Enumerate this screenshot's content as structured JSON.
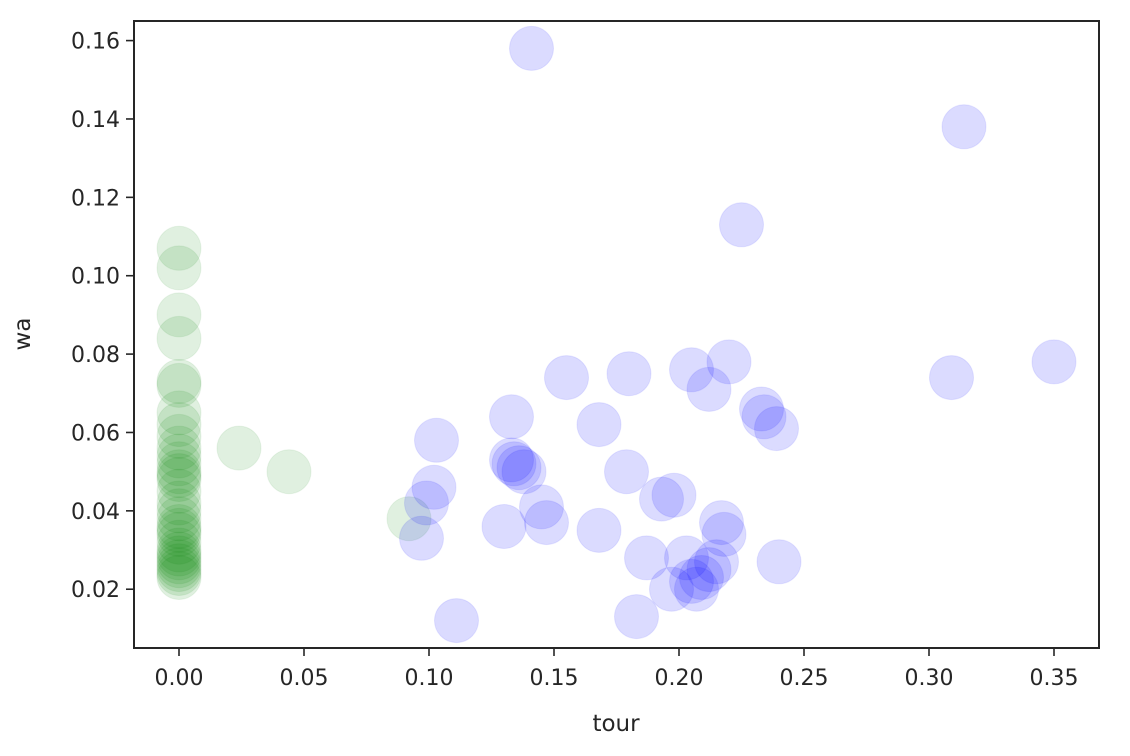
{
  "chart_data": {
    "type": "scatter",
    "title": "",
    "xlabel": "tour",
    "ylabel": "wa",
    "xlim": [
      -0.018,
      0.368
    ],
    "ylim": [
      0.005,
      0.165
    ],
    "xticks": [
      0.0,
      0.05,
      0.1,
      0.15,
      0.2,
      0.25,
      0.3,
      0.35
    ],
    "xtick_labels": [
      "0.00",
      "0.05",
      "0.10",
      "0.15",
      "0.20",
      "0.25",
      "0.30",
      "0.35"
    ],
    "yticks": [
      0.02,
      0.04,
      0.06,
      0.08,
      0.1,
      0.12,
      0.14,
      0.16
    ],
    "ytick_labels": [
      "0.02",
      "0.04",
      "0.06",
      "0.08",
      "0.10",
      "0.12",
      "0.14",
      "0.16"
    ],
    "grid": false,
    "legend": "none",
    "series": [
      {
        "color": "#008000",
        "alpha": 0.12,
        "points": [
          [
            0,
            0.107
          ],
          [
            0,
            0.102
          ],
          [
            0,
            0.09
          ],
          [
            0,
            0.084
          ],
          [
            0,
            0.073
          ],
          [
            0,
            0.072
          ],
          [
            0,
            0.065
          ],
          [
            0,
            0.062
          ],
          [
            0,
            0.059
          ],
          [
            0,
            0.056
          ],
          [
            0,
            0.054
          ],
          [
            0,
            0.052
          ],
          [
            0,
            0.05
          ],
          [
            0,
            0.049
          ],
          [
            0,
            0.048
          ],
          [
            0,
            0.045
          ],
          [
            0,
            0.042
          ],
          [
            0,
            0.04
          ],
          [
            0,
            0.038
          ],
          [
            0,
            0.036
          ],
          [
            0,
            0.035
          ],
          [
            0,
            0.034
          ],
          [
            0,
            0.032
          ],
          [
            0,
            0.03
          ],
          [
            0,
            0.029
          ],
          [
            0,
            0.028
          ],
          [
            0,
            0.027
          ],
          [
            0,
            0.026
          ],
          [
            0,
            0.025
          ],
          [
            0,
            0.024
          ],
          [
            0,
            0.023
          ],
          [
            0.024,
            0.056
          ],
          [
            0.044,
            0.05
          ],
          [
            0.092,
            0.038
          ]
        ]
      },
      {
        "color": "#0000ff",
        "alpha": 0.14,
        "points": [
          [
            0.141,
            0.158
          ],
          [
            0.314,
            0.138
          ],
          [
            0.225,
            0.113
          ],
          [
            0.35,
            0.078
          ],
          [
            0.309,
            0.074
          ],
          [
            0.22,
            0.078
          ],
          [
            0.205,
            0.076
          ],
          [
            0.212,
            0.071
          ],
          [
            0.18,
            0.075
          ],
          [
            0.155,
            0.074
          ],
          [
            0.233,
            0.066
          ],
          [
            0.234,
            0.064
          ],
          [
            0.239,
            0.061
          ],
          [
            0.133,
            0.064
          ],
          [
            0.168,
            0.062
          ],
          [
            0.103,
            0.058
          ],
          [
            0.133,
            0.053
          ],
          [
            0.136,
            0.051
          ],
          [
            0.134,
            0.052
          ],
          [
            0.138,
            0.05
          ],
          [
            0.179,
            0.05
          ],
          [
            0.102,
            0.046
          ],
          [
            0.099,
            0.042
          ],
          [
            0.193,
            0.043
          ],
          [
            0.198,
            0.044
          ],
          [
            0.145,
            0.041
          ],
          [
            0.147,
            0.037
          ],
          [
            0.13,
            0.036
          ],
          [
            0.168,
            0.035
          ],
          [
            0.097,
            0.033
          ],
          [
            0.217,
            0.037
          ],
          [
            0.218,
            0.034
          ],
          [
            0.187,
            0.028
          ],
          [
            0.203,
            0.028
          ],
          [
            0.215,
            0.027
          ],
          [
            0.212,
            0.025
          ],
          [
            0.209,
            0.023
          ],
          [
            0.205,
            0.022
          ],
          [
            0.207,
            0.02
          ],
          [
            0.197,
            0.02
          ],
          [
            0.24,
            0.027
          ],
          [
            0.111,
            0.012
          ],
          [
            0.183,
            0.013
          ]
        ]
      }
    ]
  }
}
